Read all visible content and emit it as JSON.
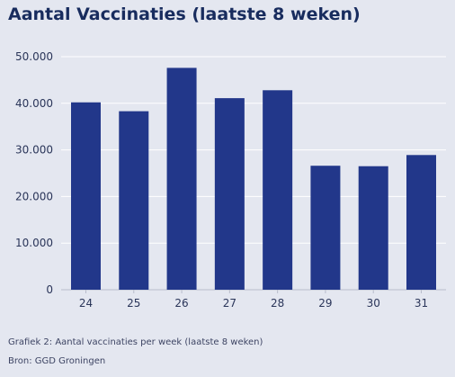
{
  "title": "Aantal Vaccinaties (laatste 8 weken)",
  "caption": "Grafiek 2: Aantal vaccinaties per week (laatste 8 weken)",
  "source": "Bron: GGD Groningen",
  "colors": {
    "bar": "#22378a",
    "grid": "#ffffff",
    "axis": "#b8bccb",
    "background": "#e4e7f0"
  },
  "chart_data": {
    "type": "bar",
    "title": "Aantal Vaccinaties (laatste 8 weken)",
    "categories": [
      "24",
      "25",
      "26",
      "27",
      "28",
      "29",
      "30",
      "31"
    ],
    "values": [
      40200,
      38300,
      47600,
      41100,
      42800,
      26600,
      26500,
      28900
    ],
    "ylim": [
      0,
      50000
    ],
    "yticks": [
      0,
      10000,
      20000,
      30000,
      40000,
      50000
    ],
    "ytick_labels": [
      "0",
      "10.000",
      "20.000",
      "30.000",
      "40.000",
      "50.000"
    ],
    "grid": true,
    "xlabel": "",
    "ylabel": ""
  }
}
